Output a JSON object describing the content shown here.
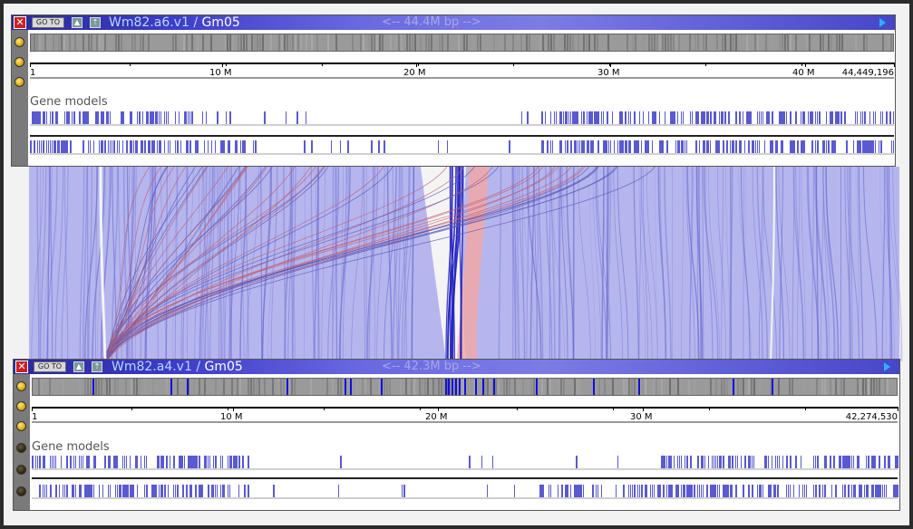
{
  "colors": {
    "titlebar_accent": "#3c3cc8",
    "gene_blue": "#5a5ad0",
    "synteny_blue": "#8a8ae0",
    "synteny_red": "#e06060",
    "highlight_blue": "#1010e0"
  },
  "top_panel": {
    "close_icon": "close-icon",
    "goto_label": "GO TO",
    "genome_name": "Wm82.a6.v1",
    "separator": " / ",
    "chromosome": "Gm05",
    "length_label": "<-- 44.4M bp -->",
    "ruler_ticks": [
      "1",
      "10 M",
      "20 M",
      "30 M",
      "40 M",
      "44,449,196"
    ],
    "track_label": "Gene models",
    "bulbs": [
      "on",
      "on",
      "on"
    ]
  },
  "bottom_panel": {
    "close_icon": "close-icon",
    "goto_label": "GO TO",
    "genome_name": "Wm82.a4.v1",
    "separator": " / ",
    "chromosome": "Gm05",
    "length_label": "<-- 42.3M bp -->",
    "ruler_ticks": [
      "1",
      "10 M",
      "20 M",
      "30 M",
      "42,274,530"
    ],
    "track_label": "Gene models",
    "bulbs": [
      "on",
      "on",
      "on",
      "off",
      "off",
      "off"
    ]
  }
}
